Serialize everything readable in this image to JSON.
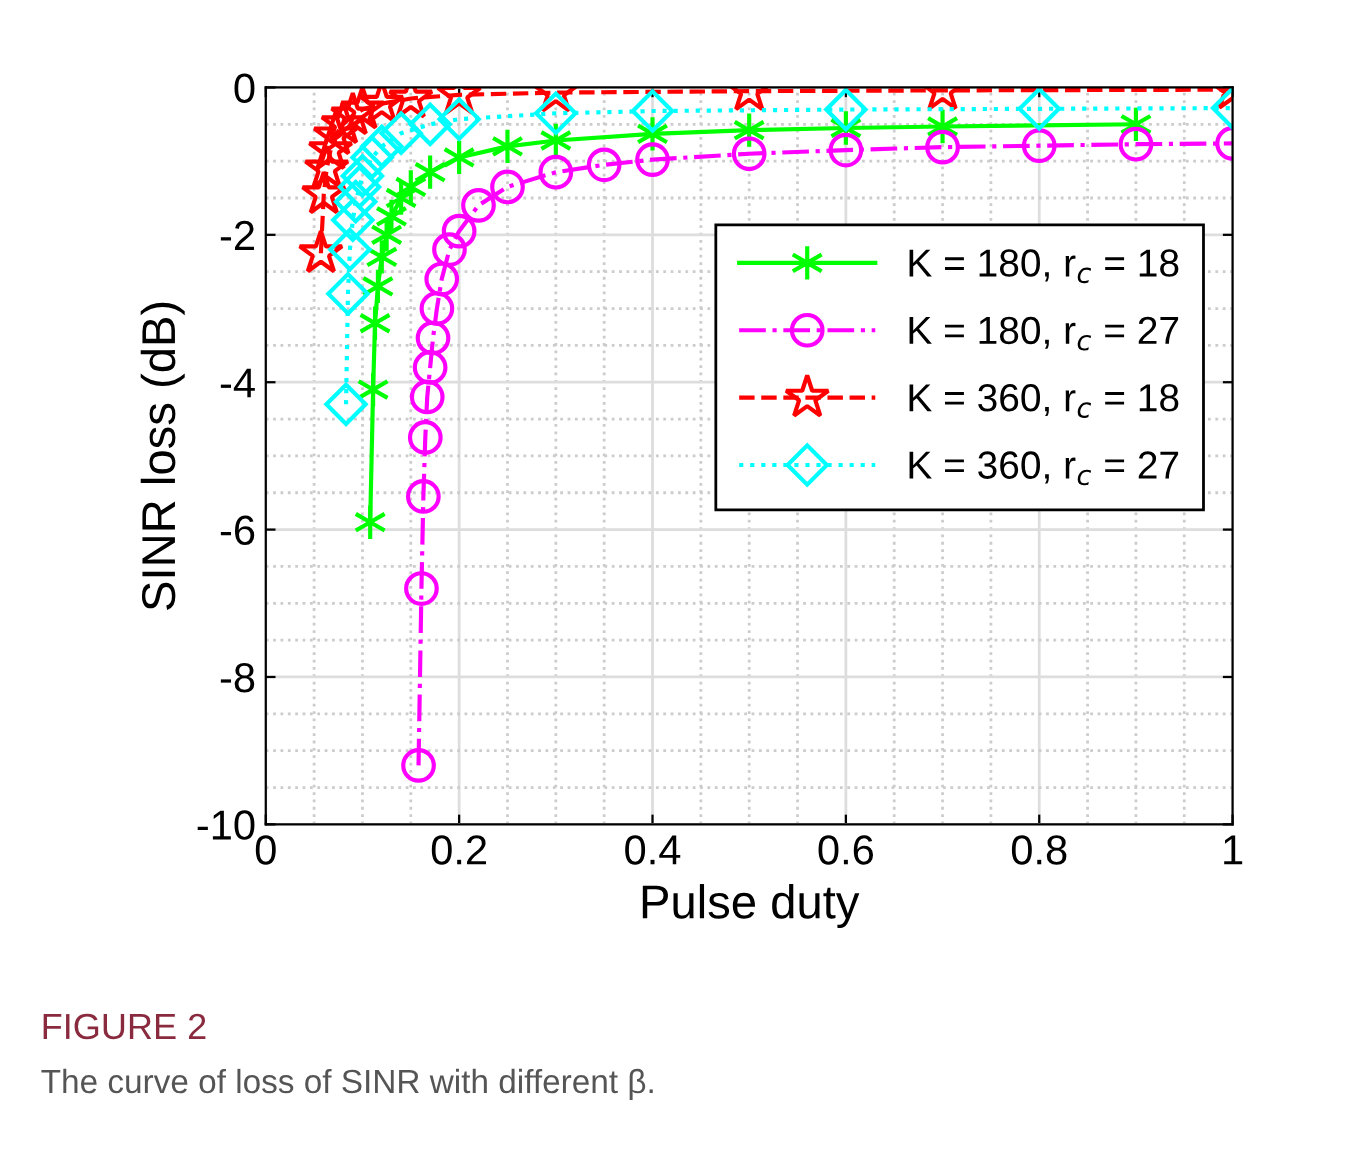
{
  "chart_data": {
    "type": "line",
    "xlabel": "Pulse duty",
    "ylabel": "SINR loss (dB)",
    "xlim": [
      0,
      1
    ],
    "ylim": [
      -10,
      0
    ],
    "xticks": [
      0,
      0.2,
      0.4,
      0.6,
      0.8,
      1
    ],
    "yticks": [
      -10,
      -8,
      -6,
      -4,
      -2,
      0
    ],
    "grid": true,
    "legend": "right",
    "annotations": [
      "FIGURE 2",
      "The curve of loss of SINR with different β."
    ],
    "series": [
      {
        "name": "K = 180, r$_{c}$ = 18",
        "color": "#00ff00",
        "marker": "cross",
        "line_style": "solid",
        "x": [
          0.108,
          0.111,
          0.113,
          0.116,
          0.12,
          0.125,
          0.13,
          0.14,
          0.15,
          0.17,
          0.2,
          0.25,
          0.3,
          0.4,
          0.5,
          0.6,
          0.7,
          0.9
        ],
        "values": [
          -5.9,
          -4.1,
          -3.2,
          -2.7,
          -2.3,
          -2.0,
          -1.75,
          -1.5,
          -1.35,
          -1.15,
          -0.95,
          -0.8,
          -0.72,
          -0.63,
          -0.58,
          -0.55,
          -0.53,
          -0.5
        ]
      },
      {
        "name": "K = 180, r$_{c}$ = 27",
        "color": "#ff00ff",
        "marker": "circle",
        "line_style": "dashdot",
        "x": [
          0.158,
          0.161,
          0.163,
          0.165,
          0.167,
          0.17,
          0.173,
          0.177,
          0.182,
          0.19,
          0.2,
          0.22,
          0.25,
          0.3,
          0.35,
          0.4,
          0.5,
          0.6,
          0.7,
          0.8,
          0.9,
          1.0
        ],
        "values": [
          -9.2,
          -6.8,
          -5.55,
          -4.75,
          -4.2,
          -3.8,
          -3.4,
          -3.0,
          -2.6,
          -2.2,
          -1.95,
          -1.6,
          -1.35,
          -1.15,
          -1.05,
          -0.98,
          -0.9,
          -0.85,
          -0.81,
          -0.79,
          -0.77,
          -0.76
        ]
      },
      {
        "name": "K = 360, r$_{c}$ = 18",
        "color": "#ff0000",
        "marker": "star",
        "line_style": "dashed",
        "x": [
          0.057,
          0.06,
          0.063,
          0.067,
          0.072,
          0.08,
          0.09,
          0.1,
          0.12,
          0.15,
          0.2,
          0.3,
          0.5,
          0.7,
          1.0
        ],
        "values": [
          -2.25,
          -1.45,
          -1.1,
          -0.85,
          -0.65,
          -0.5,
          -0.38,
          -0.3,
          -0.22,
          -0.15,
          -0.1,
          -0.07,
          -0.05,
          -0.04,
          -0.03
        ]
      },
      {
        "name": "K = 360, r$_{c}$ = 27",
        "color": "#00ffff",
        "marker": "diamond",
        "line_style": "dotted",
        "x": [
          0.083,
          0.085,
          0.087,
          0.09,
          0.093,
          0.097,
          0.1,
          0.11,
          0.12,
          0.14,
          0.17,
          0.2,
          0.3,
          0.4,
          0.6,
          0.8,
          1.0
        ],
        "values": [
          -4.3,
          -2.8,
          -2.2,
          -1.8,
          -1.55,
          -1.35,
          -1.2,
          -0.95,
          -0.8,
          -0.62,
          -0.5,
          -0.43,
          -0.35,
          -0.32,
          -0.3,
          -0.29,
          -0.28
        ]
      }
    ]
  }
}
